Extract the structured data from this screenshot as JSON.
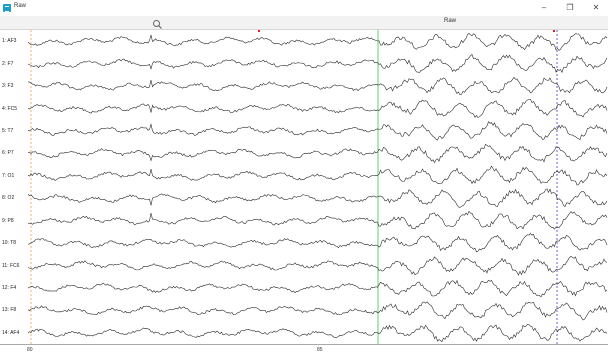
{
  "window": {
    "title": "Raw",
    "minimize_glyph": "–",
    "maximize_glyph": "❐",
    "close_glyph": "✕"
  },
  "toolbar": {
    "search_icon": "search-icon",
    "tab_label": "Raw"
  },
  "channels": [
    {
      "label": "1: AF3"
    },
    {
      "label": "2: F7"
    },
    {
      "label": "3: F3"
    },
    {
      "label": "4: FC5"
    },
    {
      "label": "5: T7"
    },
    {
      "label": "6: P7"
    },
    {
      "label": "7: O1"
    },
    {
      "label": "8: O2"
    },
    {
      "label": "9: P8"
    },
    {
      "label": "10: T8"
    },
    {
      "label": "11: FC6"
    },
    {
      "label": "12: F4"
    },
    {
      "label": "13: F8"
    },
    {
      "label": "14: AF4"
    }
  ],
  "axis": {
    "ticks": [
      "80",
      "85"
    ]
  },
  "colors": {
    "trace": "#2a2a2a",
    "cursor_green": "#2ecc40",
    "marker_orange": "#e8a050",
    "marker_blue": "#3a3ad0",
    "marker_red": "#e02020"
  }
}
